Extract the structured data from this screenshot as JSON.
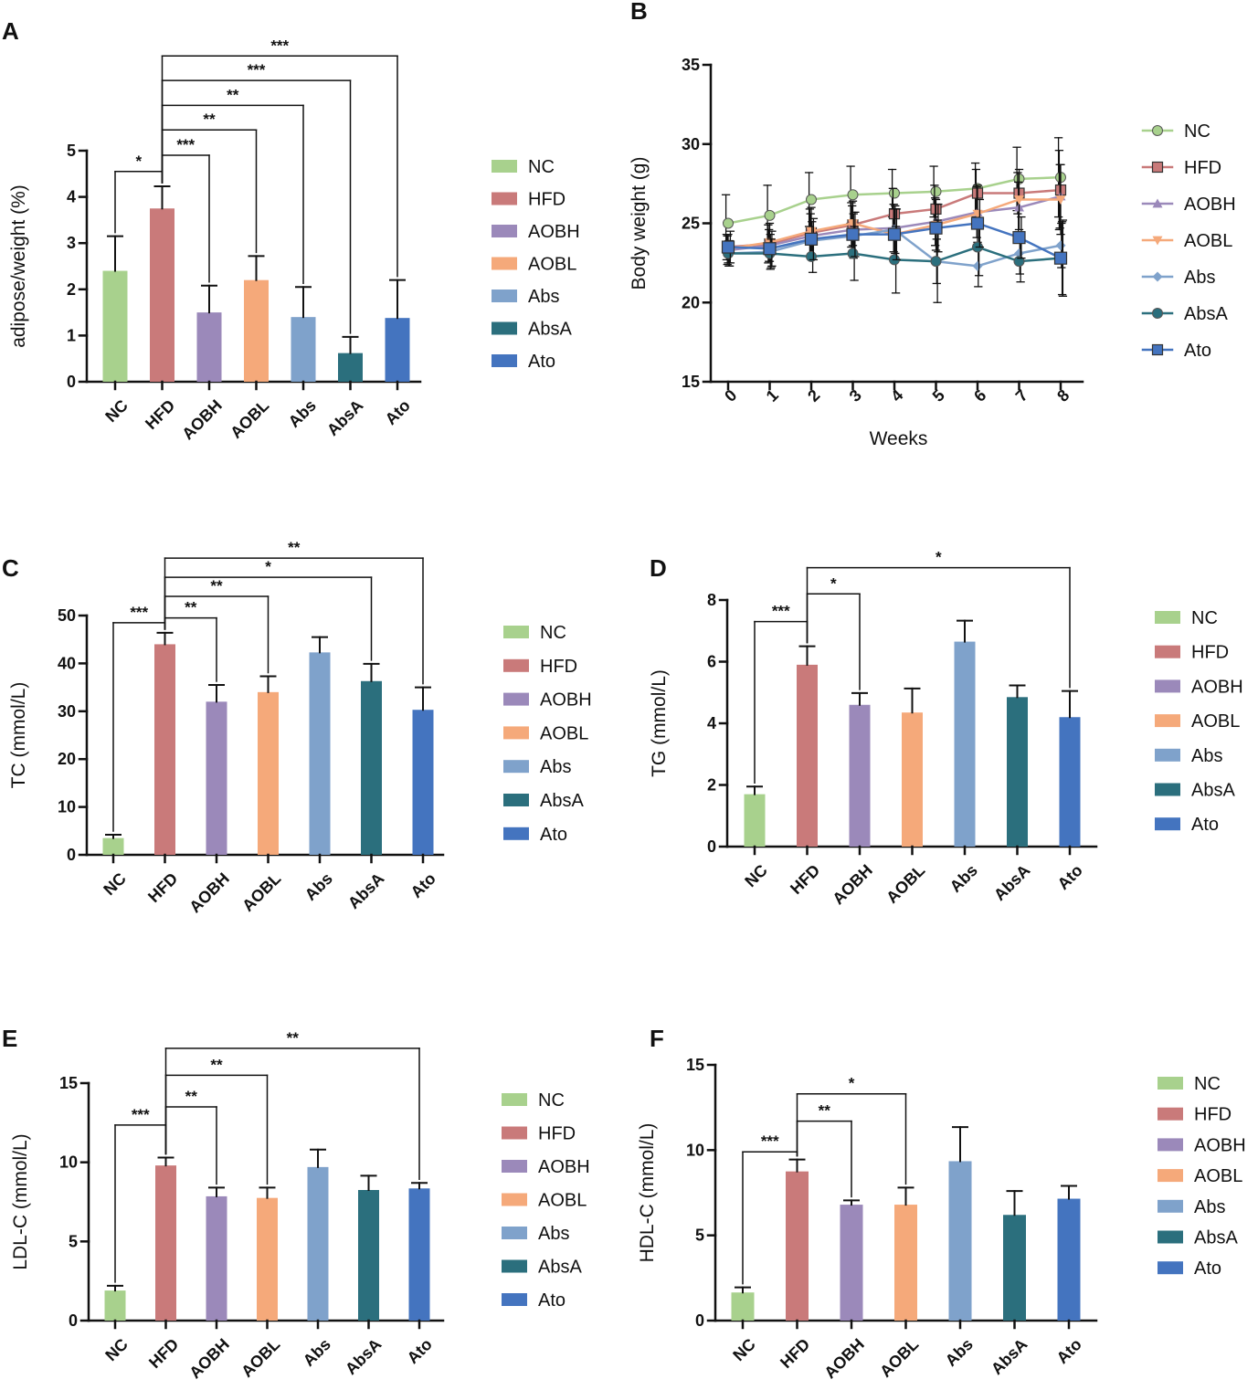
{
  "colors": {
    "NC": "#a8d18d",
    "HFD": "#c97a7a",
    "AOBH": "#9b89ba",
    "AOBL": "#f5a97a",
    "Abs": "#7fa2cb",
    "AbsA": "#2b6f7d",
    "Ato": "#4474bf",
    "ink": "#111111"
  },
  "legend": [
    "NC",
    "HFD",
    "AOBH",
    "AOBL",
    "Abs",
    "AbsA",
    "Ato"
  ],
  "chart_data": [
    {
      "id": "A",
      "panel_label": "A",
      "type": "bar",
      "categories": [
        "NC",
        "HFD",
        "AOBH",
        "AOBL",
        "Abs",
        "AbsA",
        "Ato"
      ],
      "values": [
        2.4,
        3.75,
        1.5,
        2.2,
        1.4,
        0.62,
        1.38
      ],
      "errors": [
        0.75,
        0.48,
        0.58,
        0.52,
        0.65,
        0.35,
        0.82
      ],
      "ylabel": "adipose/weight  (%)",
      "xlabel": "",
      "ylim": [
        0,
        5
      ],
      "yticks": [
        0,
        1,
        2,
        3,
        4,
        5
      ],
      "significance": [
        {
          "from": "HFD",
          "to": "NC",
          "stars": "*",
          "y": 4.55
        },
        {
          "from": "HFD",
          "to": "AOBH",
          "stars": "***",
          "y": 4.9
        },
        {
          "from": "HFD",
          "to": "AOBL",
          "stars": "**",
          "y": 5.45
        },
        {
          "from": "HFD",
          "to": "Abs",
          "stars": "**",
          "y": 5.98
        },
        {
          "from": "HFD",
          "to": "AbsA",
          "stars": "***",
          "y": 6.52
        },
        {
          "from": "HFD",
          "to": "Ato",
          "stars": "***",
          "y": 7.05
        }
      ]
    },
    {
      "id": "B",
      "panel_label": "B",
      "type": "line",
      "x": [
        0,
        1,
        2,
        3,
        4,
        5,
        6,
        7,
        8
      ],
      "xlabel": "Weeks",
      "ylabel": "Body weight  (g)",
      "ylim": [
        15,
        35
      ],
      "yticks": [
        15,
        20,
        25,
        30,
        35
      ],
      "series": [
        {
          "name": "NC",
          "marker": "circle",
          "values": [
            25.0,
            25.5,
            26.5,
            26.8,
            26.9,
            27.0,
            27.2,
            27.8,
            27.9
          ],
          "errors": [
            1.8,
            1.9,
            1.7,
            1.8,
            1.5,
            1.6,
            1.6,
            2.0,
            2.5
          ]
        },
        {
          "name": "HFD",
          "marker": "square",
          "values": [
            23.5,
            23.7,
            24.4,
            24.9,
            25.6,
            25.9,
            26.9,
            26.9,
            27.1
          ],
          "errors": [
            0.8,
            1.2,
            1.5,
            1.4,
            1.6,
            1.5,
            1.5,
            1.3,
            2.5
          ]
        },
        {
          "name": "AOBH",
          "marker": "triangle-up",
          "values": [
            23.3,
            23.6,
            24.2,
            24.6,
            24.7,
            25.1,
            25.7,
            26.0,
            26.7
          ],
          "errors": [
            0.9,
            1.0,
            1.4,
            1.5,
            1.5,
            1.5,
            1.6,
            1.6,
            2.0
          ]
        },
        {
          "name": "AOBL",
          "marker": "triangle-down",
          "values": [
            23.4,
            23.8,
            24.5,
            25.0,
            24.3,
            24.9,
            25.6,
            26.5,
            26.5
          ],
          "errors": [
            0.9,
            1.2,
            1.5,
            1.4,
            1.6,
            1.6,
            1.8,
            1.9,
            2.2
          ]
        },
        {
          "name": "Abs",
          "marker": "diamond",
          "values": [
            23.1,
            23.2,
            23.9,
            24.2,
            24.6,
            22.6,
            22.3,
            23.1,
            23.6
          ],
          "errors": [
            0.8,
            1.1,
            1.2,
            1.4,
            1.5,
            1.4,
            1.3,
            1.3,
            1.4
          ]
        },
        {
          "name": "AbsA",
          "marker": "circle",
          "values": [
            23.1,
            23.1,
            22.9,
            23.1,
            22.7,
            22.6,
            23.5,
            22.6,
            22.8
          ],
          "errors": [
            0.8,
            0.9,
            1.0,
            1.7,
            2.1,
            2.6,
            1.8,
            1.3,
            2.3
          ]
        },
        {
          "name": "Ato",
          "marker": "square",
          "values": [
            23.5,
            23.4,
            24.0,
            24.3,
            24.3,
            24.7,
            25.0,
            24.1,
            22.8
          ],
          "errors": [
            1.0,
            1.1,
            1.3,
            1.4,
            1.6,
            1.5,
            1.5,
            1.3,
            2.4
          ]
        }
      ]
    },
    {
      "id": "C",
      "panel_label": "C",
      "type": "bar",
      "categories": [
        "NC",
        "HFD",
        "AOBH",
        "AOBL",
        "Abs",
        "AbsA",
        "Ato"
      ],
      "values": [
        3.5,
        44.0,
        32.0,
        34.0,
        42.3,
        36.3,
        30.3
      ],
      "errors": [
        0.7,
        2.4,
        3.5,
        3.3,
        3.2,
        3.6,
        4.7
      ],
      "ylabel": "TC (mmol/L)",
      "xlabel": "",
      "ylim": [
        0,
        50
      ],
      "yticks": [
        0,
        10,
        20,
        30,
        40,
        50
      ],
      "significance": [
        {
          "from": "HFD",
          "to": "NC",
          "stars": "***",
          "y": 48.5
        },
        {
          "from": "HFD",
          "to": "AOBH",
          "stars": "**",
          "y": 49.5
        },
        {
          "from": "HFD",
          "to": "AOBL",
          "stars": "**",
          "y": 54.0
        },
        {
          "from": "HFD",
          "to": "AbsA",
          "stars": "*",
          "y": 58.0
        },
        {
          "from": "HFD",
          "to": "Ato",
          "stars": "**",
          "y": 62.0
        }
      ]
    },
    {
      "id": "D",
      "panel_label": "D",
      "type": "bar",
      "categories": [
        "NC",
        "HFD",
        "AOBH",
        "AOBL",
        "Abs",
        "AbsA",
        "Ato"
      ],
      "values": [
        1.7,
        5.9,
        4.6,
        4.35,
        6.65,
        4.85,
        4.2
      ],
      "errors": [
        0.25,
        0.6,
        0.38,
        0.78,
        0.68,
        0.38,
        0.85
      ],
      "ylabel": "TG (mmol/L)",
      "xlabel": "",
      "ylim": [
        0,
        8
      ],
      "yticks": [
        0,
        2,
        4,
        6,
        8
      ],
      "significance": [
        {
          "from": "HFD",
          "to": "NC",
          "stars": "***",
          "y": 7.3
        },
        {
          "from": "HFD",
          "to": "AOBH",
          "stars": "*",
          "y": 8.2
        },
        {
          "from": "HFD",
          "to": "Ato",
          "stars": "*",
          "y": 9.05
        }
      ]
    },
    {
      "id": "E",
      "panel_label": "E",
      "type": "bar",
      "categories": [
        "NC",
        "HFD",
        "AOBH",
        "AOBL",
        "Abs",
        "AbsA",
        "Ato"
      ],
      "values": [
        1.9,
        9.8,
        7.85,
        7.75,
        9.7,
        8.25,
        8.35
      ],
      "errors": [
        0.3,
        0.5,
        0.55,
        0.65,
        1.1,
        0.9,
        0.35
      ],
      "ylabel": "LDL-C (mmol/L)",
      "xlabel": "",
      "ylim": [
        0,
        15
      ],
      "yticks": [
        0,
        5,
        10,
        15
      ],
      "significance": [
        {
          "from": "HFD",
          "to": "NC",
          "stars": "***",
          "y": 12.35
        },
        {
          "from": "HFD",
          "to": "AOBH",
          "stars": "**",
          "y": 13.5
        },
        {
          "from": "HFD",
          "to": "AOBL",
          "stars": "**",
          "y": 15.5
        },
        {
          "from": "HFD",
          "to": "Ato",
          "stars": "**",
          "y": 17.2
        }
      ]
    },
    {
      "id": "F",
      "panel_label": "F",
      "type": "bar",
      "categories": [
        "NC",
        "HFD",
        "AOBH",
        "AOBL",
        "Abs",
        "AbsA",
        "Ato"
      ],
      "values": [
        1.65,
        8.75,
        6.8,
        6.8,
        9.35,
        6.2,
        7.15
      ],
      "errors": [
        0.3,
        0.7,
        0.25,
        1.0,
        2.0,
        1.4,
        0.75
      ],
      "ylabel": "HDL-C (mmol/L)",
      "xlabel": "",
      "ylim": [
        0,
        15
      ],
      "yticks": [
        0,
        5,
        10,
        15
      ],
      "significance": [
        {
          "from": "HFD",
          "to": "NC",
          "stars": "***",
          "y": 9.9
        },
        {
          "from": "HFD",
          "to": "AOBH",
          "stars": "**",
          "y": 11.7
        },
        {
          "from": "HFD",
          "to": "AOBL",
          "stars": "*",
          "y": 13.3
        }
      ]
    }
  ]
}
